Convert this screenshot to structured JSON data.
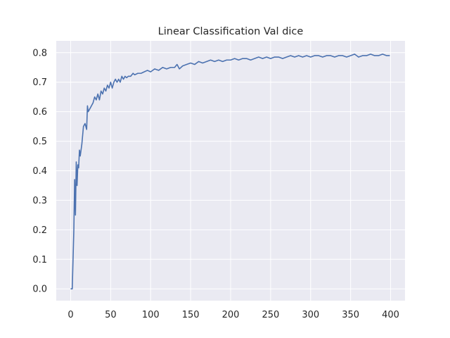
{
  "chart_data": {
    "type": "line",
    "title": "Linear Classification Val dice",
    "xlabel": "",
    "ylabel": "",
    "xlim": [
      -18,
      418
    ],
    "ylim": [
      -0.04,
      0.84
    ],
    "xticks": [
      0,
      50,
      100,
      150,
      200,
      250,
      300,
      350,
      400
    ],
    "yticks": [
      0.0,
      0.1,
      0.2,
      0.3,
      0.4,
      0.5,
      0.6,
      0.7,
      0.8
    ],
    "xtick_labels": [
      "0",
      "50",
      "100",
      "150",
      "200",
      "250",
      "300",
      "350",
      "400"
    ],
    "ytick_labels": [
      "0.0",
      "0.1",
      "0.2",
      "0.3",
      "0.4",
      "0.5",
      "0.6",
      "0.7",
      "0.8"
    ],
    "grid": true,
    "style": {
      "background": "#eaeaf2",
      "grid_color": "#ffffff",
      "line_color": "#4c72b0"
    },
    "series": [
      {
        "x": [
          0,
          2,
          4,
          5,
          6,
          7,
          8,
          9,
          10,
          11,
          12,
          14,
          16,
          18,
          20,
          21,
          22,
          24,
          26,
          28,
          30,
          32,
          34,
          36,
          38,
          40,
          42,
          44,
          46,
          48,
          50,
          52,
          54,
          56,
          58,
          60,
          62,
          64,
          66,
          68,
          70,
          72,
          75,
          78,
          80,
          84,
          88,
          92,
          96,
          100,
          105,
          110,
          115,
          120,
          125,
          130,
          133,
          136,
          140,
          145,
          150,
          155,
          160,
          165,
          170,
          175,
          180,
          185,
          190,
          195,
          200,
          205,
          210,
          215,
          220,
          225,
          230,
          235,
          240,
          245,
          250,
          255,
          260,
          265,
          270,
          275,
          280,
          285,
          290,
          295,
          300,
          305,
          310,
          315,
          320,
          325,
          330,
          335,
          340,
          345,
          350,
          355,
          360,
          365,
          370,
          375,
          380,
          385,
          390,
          395,
          399
        ],
        "y": [
          0.0,
          0.0,
          0.2,
          0.37,
          0.25,
          0.43,
          0.35,
          0.42,
          0.41,
          0.47,
          0.45,
          0.49,
          0.55,
          0.56,
          0.54,
          0.62,
          0.6,
          0.61,
          0.62,
          0.63,
          0.65,
          0.64,
          0.66,
          0.64,
          0.67,
          0.66,
          0.68,
          0.67,
          0.69,
          0.68,
          0.7,
          0.68,
          0.7,
          0.71,
          0.7,
          0.71,
          0.7,
          0.72,
          0.71,
          0.72,
          0.715,
          0.72,
          0.72,
          0.73,
          0.725,
          0.73,
          0.73,
          0.735,
          0.74,
          0.735,
          0.745,
          0.74,
          0.75,
          0.745,
          0.75,
          0.75,
          0.76,
          0.745,
          0.755,
          0.76,
          0.765,
          0.76,
          0.77,
          0.765,
          0.77,
          0.775,
          0.77,
          0.775,
          0.77,
          0.775,
          0.775,
          0.78,
          0.775,
          0.78,
          0.78,
          0.775,
          0.78,
          0.785,
          0.78,
          0.785,
          0.78,
          0.785,
          0.785,
          0.78,
          0.785,
          0.79,
          0.785,
          0.79,
          0.785,
          0.79,
          0.785,
          0.79,
          0.79,
          0.785,
          0.79,
          0.79,
          0.785,
          0.79,
          0.79,
          0.785,
          0.79,
          0.795,
          0.785,
          0.79,
          0.79,
          0.795,
          0.79,
          0.79,
          0.795,
          0.79,
          0.79
        ]
      }
    ]
  }
}
